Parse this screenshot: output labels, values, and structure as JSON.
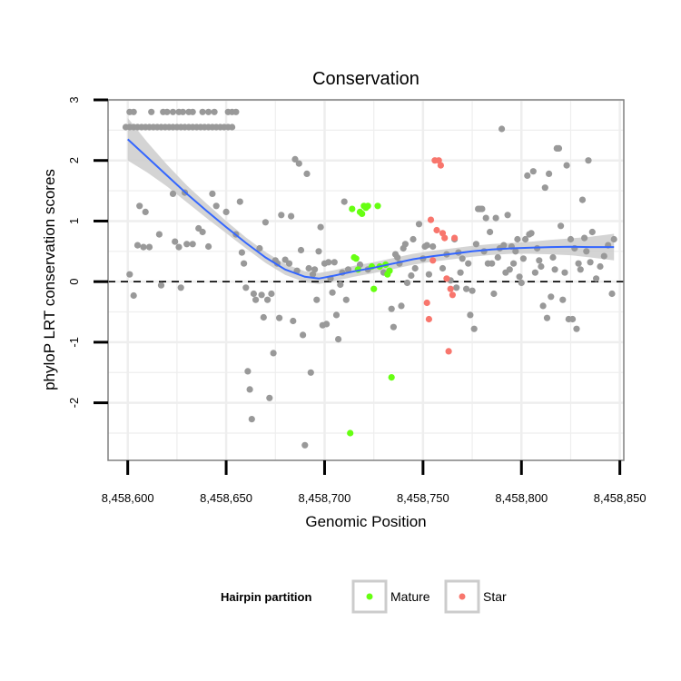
{
  "chart_data": {
    "type": "scatter",
    "title": "Conservation",
    "xlabel": "Genomic Position",
    "ylabel": "phyloP LRT conservation scores",
    "xlim": [
      8458590,
      8458852
    ],
    "ylim": [
      -2.95,
      3.0
    ],
    "xticks": [
      8458600,
      8458650,
      8458700,
      8458750,
      8458800,
      8458850
    ],
    "xtick_labels": [
      "8,458,600",
      "8,458,650",
      "8,458,700",
      "8,458,750",
      "8,458,800",
      "8,458,850"
    ],
    "yticks": [
      -2,
      -1,
      0,
      1,
      2,
      3
    ],
    "ytick_labels": [
      "-2",
      "-1",
      "0",
      "1",
      "2",
      "3"
    ],
    "reference_line": {
      "y": 0,
      "style": "dashed"
    },
    "legend": {
      "title": "Hairpin partition",
      "position": "bottom",
      "entries": [
        {
          "label": "Mature",
          "color": "#66ff11"
        },
        {
          "label": "Star",
          "color": "#f8766d"
        }
      ]
    },
    "colors": {
      "background": "#ffffff",
      "grid": "#eeeeee",
      "other": "#999999",
      "mature": "#66ff11",
      "star": "#f8766d",
      "smooth": "#3366ff",
      "ribbon": "#cccccc"
    },
    "series": [
      {
        "name": "Other",
        "points": [
          [
            8458599,
            2.55
          ],
          [
            8458601,
            2.55
          ],
          [
            8458603,
            2.55
          ],
          [
            8458605,
            2.55
          ],
          [
            8458607,
            2.55
          ],
          [
            8458609,
            2.55
          ],
          [
            8458611,
            2.55
          ],
          [
            8458613,
            2.55
          ],
          [
            8458615,
            2.55
          ],
          [
            8458617,
            2.55
          ],
          [
            8458619,
            2.55
          ],
          [
            8458621,
            2.55
          ],
          [
            8458623,
            2.55
          ],
          [
            8458625,
            2.55
          ],
          [
            8458627,
            2.55
          ],
          [
            8458629,
            2.55
          ],
          [
            8458631,
            2.55
          ],
          [
            8458633,
            2.55
          ],
          [
            8458635,
            2.55
          ],
          [
            8458637,
            2.55
          ],
          [
            8458639,
            2.55
          ],
          [
            8458641,
            2.55
          ],
          [
            8458643,
            2.55
          ],
          [
            8458645,
            2.55
          ],
          [
            8458647,
            2.55
          ],
          [
            8458649,
            2.55
          ],
          [
            8458651,
            2.55
          ],
          [
            8458653,
            2.55
          ],
          [
            8458601,
            2.8
          ],
          [
            8458603,
            2.8
          ],
          [
            8458612,
            2.8
          ],
          [
            8458618,
            2.8
          ],
          [
            8458620,
            2.8
          ],
          [
            8458623,
            2.8
          ],
          [
            8458626,
            2.8
          ],
          [
            8458628,
            2.8
          ],
          [
            8458631,
            2.8
          ],
          [
            8458633,
            2.8
          ],
          [
            8458638,
            2.8
          ],
          [
            8458641,
            2.8
          ],
          [
            8458644,
            2.8
          ],
          [
            8458651,
            2.8
          ],
          [
            8458653,
            2.8
          ],
          [
            8458655,
            2.8
          ],
          [
            8458601,
            0.12
          ],
          [
            8458603,
            -0.23
          ],
          [
            8458605,
            0.6
          ],
          [
            8458606,
            1.25
          ],
          [
            8458608,
            0.57
          ],
          [
            8458609,
            1.15
          ],
          [
            8458611,
            0.57
          ],
          [
            8458616,
            0.78
          ],
          [
            8458617,
            -0.06
          ],
          [
            8458623,
            1.45
          ],
          [
            8458624,
            0.66
          ],
          [
            8458626,
            0.57
          ],
          [
            8458627,
            -0.1
          ],
          [
            8458629,
            1.47
          ],
          [
            8458630,
            0.62
          ],
          [
            8458633,
            0.62
          ],
          [
            8458636,
            0.88
          ],
          [
            8458638,
            0.82
          ],
          [
            8458641,
            0.58
          ],
          [
            8458643,
            1.45
          ],
          [
            8458645,
            1.25
          ],
          [
            8458650,
            1.15
          ],
          [
            8458655,
            0.78
          ],
          [
            8458657,
            1.32
          ],
          [
            8458658,
            0.48
          ],
          [
            8458659,
            0.3
          ],
          [
            8458660,
            -0.1
          ],
          [
            8458661,
            -1.48
          ],
          [
            8458662,
            -1.78
          ],
          [
            8458663,
            -2.27
          ],
          [
            8458664,
            -0.2
          ],
          [
            8458665,
            -0.3
          ],
          [
            8458667,
            0.55
          ],
          [
            8458668,
            -0.22
          ],
          [
            8458669,
            -0.59
          ],
          [
            8458670,
            0.98
          ],
          [
            8458671,
            -0.3
          ],
          [
            8458672,
            -1.92
          ],
          [
            8458673,
            -0.2
          ],
          [
            8458674,
            -1.18
          ],
          [
            8458675,
            0.35
          ],
          [
            8458676,
            0.3
          ],
          [
            8458677,
            -0.6
          ],
          [
            8458678,
            1.1
          ],
          [
            8458680,
            0.36
          ],
          [
            8458682,
            0.3
          ],
          [
            8458683,
            1.08
          ],
          [
            8458684,
            -0.65
          ],
          [
            8458685,
            2.02
          ],
          [
            8458686,
            0.18
          ],
          [
            8458687,
            1.95
          ],
          [
            8458688,
            0.52
          ],
          [
            8458689,
            -0.88
          ],
          [
            8458690,
            -2.7
          ],
          [
            8458691,
            1.78
          ],
          [
            8458692,
            0.22
          ],
          [
            8458693,
            -1.5
          ],
          [
            8458694,
            0.12
          ],
          [
            8458695,
            0.2
          ],
          [
            8458696,
            -0.3
          ],
          [
            8458697,
            0.5
          ],
          [
            8458698,
            0.9
          ],
          [
            8458699,
            -0.72
          ],
          [
            8458700,
            0.3
          ],
          [
            8458701,
            -0.7
          ],
          [
            8458702,
            0.32
          ],
          [
            8458703,
            0.05
          ],
          [
            8458704,
            -0.18
          ],
          [
            8458705,
            0.32
          ],
          [
            8458706,
            -0.55
          ],
          [
            8458707,
            -0.95
          ],
          [
            8458708,
            -0.05
          ],
          [
            8458709,
            0.15
          ],
          [
            8458710,
            1.32
          ],
          [
            8458711,
            -0.3
          ],
          [
            8458712,
            0.2
          ],
          [
            8458718,
            0.28
          ],
          [
            8458722,
            0.2
          ],
          [
            8458730,
            0.15
          ],
          [
            8458734,
            -0.45
          ],
          [
            8458735,
            -0.75
          ],
          [
            8458736,
            0.45
          ],
          [
            8458737,
            0.4
          ],
          [
            8458738,
            0.3
          ],
          [
            8458739,
            -0.4
          ],
          [
            8458740,
            0.55
          ],
          [
            8458741,
            0.62
          ],
          [
            8458742,
            -0.02
          ],
          [
            8458744,
            0.1
          ],
          [
            8458745,
            0.7
          ],
          [
            8458746,
            0.22
          ],
          [
            8458748,
            0.95
          ],
          [
            8458750,
            0.38
          ],
          [
            8458751,
            0.58
          ],
          [
            8458752,
            0.6
          ],
          [
            8458753,
            0.12
          ],
          [
            8458755,
            0.58
          ],
          [
            8458760,
            0.22
          ],
          [
            8458762,
            0.45
          ],
          [
            8458764,
            0.02
          ],
          [
            8458766,
            0.7
          ],
          [
            8458767,
            -0.1
          ],
          [
            8458768,
            0.48
          ],
          [
            8458769,
            0.15
          ],
          [
            8458770,
            0.38
          ],
          [
            8458772,
            -0.12
          ],
          [
            8458773,
            0.3
          ],
          [
            8458774,
            -0.55
          ],
          [
            8458775,
            -0.15
          ],
          [
            8458776,
            -0.78
          ],
          [
            8458777,
            0.62
          ],
          [
            8458778,
            1.2
          ],
          [
            8458779,
            1.2
          ],
          [
            8458780,
            1.2
          ],
          [
            8458781,
            0.5
          ],
          [
            8458782,
            1.05
          ],
          [
            8458783,
            0.3
          ],
          [
            8458784,
            0.82
          ],
          [
            8458785,
            0.3
          ],
          [
            8458786,
            -0.2
          ],
          [
            8458787,
            1.05
          ],
          [
            8458788,
            0.4
          ],
          [
            8458789,
            0.55
          ],
          [
            8458790,
            2.52
          ],
          [
            8458791,
            0.6
          ],
          [
            8458792,
            0.15
          ],
          [
            8458793,
            1.1
          ],
          [
            8458794,
            0.2
          ],
          [
            8458795,
            0.58
          ],
          [
            8458796,
            0.3
          ],
          [
            8458797,
            0.5
          ],
          [
            8458798,
            0.7
          ],
          [
            8458799,
            0.08
          ],
          [
            8458800,
            -0.02
          ],
          [
            8458801,
            0.38
          ],
          [
            8458802,
            0.7
          ],
          [
            8458803,
            1.75
          ],
          [
            8458804,
            0.78
          ],
          [
            8458805,
            0.8
          ],
          [
            8458806,
            1.82
          ],
          [
            8458807,
            0.15
          ],
          [
            8458808,
            0.55
          ],
          [
            8458809,
            0.35
          ],
          [
            8458810,
            0.25
          ],
          [
            8458811,
            -0.4
          ],
          [
            8458812,
            1.55
          ],
          [
            8458813,
            -0.6
          ],
          [
            8458814,
            1.78
          ],
          [
            8458815,
            -0.25
          ],
          [
            8458816,
            0.4
          ],
          [
            8458817,
            0.2
          ],
          [
            8458818,
            2.2
          ],
          [
            8458819,
            2.2
          ],
          [
            8458820,
            0.92
          ],
          [
            8458821,
            -0.3
          ],
          [
            8458822,
            0.15
          ],
          [
            8458823,
            1.92
          ],
          [
            8458824,
            -0.62
          ],
          [
            8458825,
            0.7
          ],
          [
            8458826,
            -0.62
          ],
          [
            8458827,
            0.55
          ],
          [
            8458828,
            -0.78
          ],
          [
            8458829,
            0.3
          ],
          [
            8458830,
            0.2
          ],
          [
            8458831,
            1.35
          ],
          [
            8458832,
            0.72
          ],
          [
            8458833,
            0.5
          ],
          [
            8458834,
            2.0
          ],
          [
            8458835,
            0.32
          ],
          [
            8458836,
            0.82
          ],
          [
            8458838,
            0.05
          ],
          [
            8458840,
            0.25
          ],
          [
            8458842,
            0.42
          ],
          [
            8458844,
            0.6
          ],
          [
            8458846,
            -0.2
          ],
          [
            8458847,
            0.7
          ]
        ]
      },
      {
        "name": "Mature",
        "points": [
          [
            8458713,
            -2.5
          ],
          [
            8458714,
            1.2
          ],
          [
            8458715,
            0.4
          ],
          [
            8458716,
            0.38
          ],
          [
            8458717,
            0.2
          ],
          [
            8458718,
            1.15
          ],
          [
            8458719,
            1.12
          ],
          [
            8458720,
            1.25
          ],
          [
            8458721,
            1.22
          ],
          [
            8458722,
            1.25
          ],
          [
            8458724,
            0.25
          ],
          [
            8458725,
            -0.12
          ],
          [
            8458727,
            1.25
          ],
          [
            8458728,
            0.25
          ],
          [
            8458731,
            0.28
          ],
          [
            8458732,
            0.12
          ],
          [
            8458733,
            0.18
          ],
          [
            8458734,
            -1.58
          ]
        ]
      },
      {
        "name": "Star",
        "points": [
          [
            8458752,
            -0.35
          ],
          [
            8458753,
            -0.62
          ],
          [
            8458754,
            1.02
          ],
          [
            8458755,
            0.35
          ],
          [
            8458756,
            2.0
          ],
          [
            8458757,
            0.85
          ],
          [
            8458758,
            2.0
          ],
          [
            8458759,
            1.92
          ],
          [
            8458760,
            0.8
          ],
          [
            8458761,
            0.72
          ],
          [
            8458762,
            0.05
          ],
          [
            8458763,
            -1.15
          ],
          [
            8458764,
            -0.12
          ],
          [
            8458765,
            -0.22
          ],
          [
            8458766,
            0.72
          ]
        ]
      }
    ],
    "smooth_curve": {
      "method": "loess",
      "points": [
        [
          8458600,
          2.35
        ],
        [
          8458610,
          2.05
        ],
        [
          8458620,
          1.75
        ],
        [
          8458630,
          1.45
        ],
        [
          8458640,
          1.17
        ],
        [
          8458650,
          0.9
        ],
        [
          8458660,
          0.64
        ],
        [
          8458670,
          0.4
        ],
        [
          8458680,
          0.2
        ],
        [
          8458690,
          0.08
        ],
        [
          8458697,
          0.05
        ],
        [
          8458705,
          0.1
        ],
        [
          8458715,
          0.17
        ],
        [
          8458725,
          0.23
        ],
        [
          8458735,
          0.3
        ],
        [
          8458745,
          0.37
        ],
        [
          8458755,
          0.42
        ],
        [
          8458765,
          0.46
        ],
        [
          8458775,
          0.5
        ],
        [
          8458785,
          0.53
        ],
        [
          8458795,
          0.55
        ],
        [
          8458805,
          0.56
        ],
        [
          8458815,
          0.57
        ],
        [
          8458825,
          0.575
        ],
        [
          8458835,
          0.57
        ],
        [
          8458847,
          0.57
        ]
      ],
      "ci_halfwidth": [
        0.35,
        0.25,
        0.18,
        0.14,
        0.12,
        0.1,
        0.09,
        0.09,
        0.09,
        0.09,
        0.09,
        0.09,
        0.09,
        0.09,
        0.09,
        0.09,
        0.09,
        0.09,
        0.09,
        0.09,
        0.09,
        0.1,
        0.12,
        0.14,
        0.17,
        0.22
      ]
    }
  }
}
